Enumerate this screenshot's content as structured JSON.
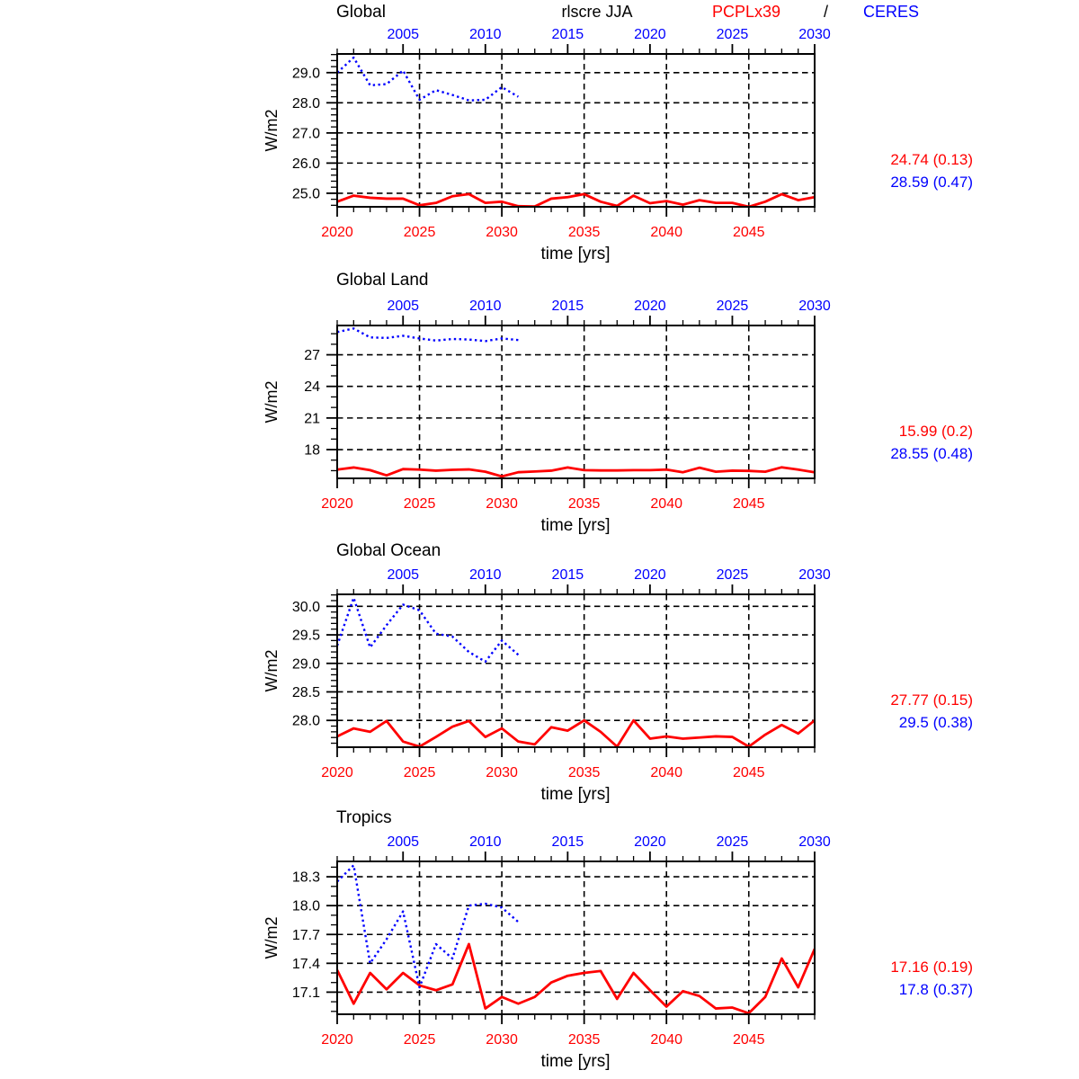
{
  "header": {
    "measure": "rlscre JJA",
    "series_red": "PCPLx39",
    "separator": "/",
    "series_blue": "CERES"
  },
  "axis_labels": {
    "x": "time [yrs]",
    "y": "W/m2"
  },
  "colors": {
    "red": "#ff0000",
    "blue": "#0000ff",
    "grid": "#000000",
    "frame": "#000000"
  },
  "chart_data": [
    {
      "type": "line",
      "name": "global",
      "title": "Global",
      "ylabel": "W/m2",
      "xlabel": "time [yrs]",
      "grid": true,
      "ylim": [
        24.55,
        29.62
      ],
      "y_axis": {
        "major_ticks": [
          25,
          26,
          27,
          28,
          29
        ],
        "tick_labels": [
          "25.0",
          "26.0",
          "27.0",
          "28.0",
          "29.0"
        ],
        "minor_step": 0.2
      },
      "bottom_axis": {
        "range": [
          2020,
          2049
        ],
        "major_ticks": [
          2020,
          2025,
          2030,
          2035,
          2040,
          2045
        ],
        "tick_labels": [
          "2020",
          "2025",
          "2030",
          "2035",
          "2040",
          "2045"
        ],
        "minor_step": 1,
        "color": "#ff0000"
      },
      "top_axis": {
        "range": [
          2001,
          2030
        ],
        "major_ticks": [
          2005,
          2010,
          2015,
          2020,
          2025,
          2030
        ],
        "tick_labels": [
          "2005",
          "2010",
          "2015",
          "2020",
          "2025",
          "2030"
        ],
        "minor_step": 1,
        "color": "#0000ff"
      },
      "series": [
        {
          "name": "PCPLx39",
          "color": "#ff0000",
          "line_style": "solid",
          "x_axis": "bottom",
          "x_start": 2020,
          "x_step": 1,
          "values": [
            24.72,
            24.92,
            24.85,
            24.82,
            24.82,
            24.6,
            24.68,
            24.9,
            24.97,
            24.68,
            24.72,
            24.57,
            24.56,
            24.82,
            24.87,
            24.97,
            24.72,
            24.58,
            24.92,
            24.67,
            24.74,
            24.62,
            24.77,
            24.68,
            24.68,
            24.55,
            24.72,
            24.97,
            24.77,
            24.87
          ]
        },
        {
          "name": "CERES",
          "color": "#0000ff",
          "line_style": "dotted",
          "x_axis": "top",
          "x_start": 2001,
          "x_step": 1,
          "values": [
            29.0,
            29.5,
            28.58,
            28.62,
            29.07,
            28.1,
            28.42,
            28.26,
            28.08,
            28.1,
            28.52,
            28.2
          ]
        }
      ],
      "stats": {
        "pcplx39": "24.74 (0.13)",
        "ceres": "28.59 (0.47)"
      }
    },
    {
      "type": "line",
      "name": "global-land",
      "title": "Global Land",
      "ylabel": "W/m2",
      "xlabel": "time [yrs]",
      "grid": true,
      "ylim": [
        15.27,
        29.78
      ],
      "y_axis": {
        "major_ticks": [
          18,
          21,
          24,
          27
        ],
        "tick_labels": [
          "18",
          "21",
          "24",
          "27"
        ],
        "minor_step": 1
      },
      "bottom_axis": {
        "range": [
          2020,
          2049
        ],
        "major_ticks": [
          2020,
          2025,
          2030,
          2035,
          2040,
          2045
        ],
        "tick_labels": [
          "2020",
          "2025",
          "2030",
          "2035",
          "2040",
          "2045"
        ],
        "minor_step": 1,
        "color": "#ff0000"
      },
      "top_axis": {
        "range": [
          2001,
          2030
        ],
        "major_ticks": [
          2005,
          2010,
          2015,
          2020,
          2025,
          2030
        ],
        "tick_labels": [
          "2005",
          "2010",
          "2015",
          "2020",
          "2025",
          "2030"
        ],
        "minor_step": 1,
        "color": "#0000ff"
      },
      "series": [
        {
          "name": "PCPLx39",
          "color": "#ff0000",
          "line_style": "solid",
          "x_axis": "bottom",
          "x_start": 2020,
          "x_step": 1,
          "values": [
            16.1,
            16.3,
            16.05,
            15.55,
            16.15,
            16.1,
            16.0,
            16.08,
            16.12,
            15.9,
            15.45,
            15.85,
            15.92,
            16.0,
            16.3,
            16.05,
            16.02,
            16.02,
            16.05,
            16.05,
            16.1,
            15.85,
            16.28,
            15.9,
            16.0,
            15.98,
            15.9,
            16.32,
            16.1,
            15.85
          ]
        },
        {
          "name": "CERES",
          "color": "#0000ff",
          "line_style": "dotted",
          "x_axis": "top",
          "x_start": 2001,
          "x_step": 1,
          "values": [
            29.15,
            29.5,
            28.65,
            28.6,
            28.8,
            28.55,
            28.35,
            28.5,
            28.45,
            28.3,
            28.55,
            28.4
          ]
        }
      ],
      "stats": {
        "pcplx39": "15.99 (0.2)",
        "ceres": "28.55 (0.48)"
      }
    },
    {
      "type": "line",
      "name": "global-ocean",
      "title": "Global Ocean",
      "ylabel": "W/m2",
      "xlabel": "time [yrs]",
      "grid": true,
      "ylim": [
        27.53,
        30.21
      ],
      "y_axis": {
        "major_ticks": [
          28.0,
          28.5,
          29.0,
          29.5,
          30.0
        ],
        "tick_labels": [
          "28.0",
          "28.5",
          "29.0",
          "29.5",
          "30.0"
        ],
        "minor_step": 0.1
      },
      "bottom_axis": {
        "range": [
          2020,
          2049
        ],
        "major_ticks": [
          2020,
          2025,
          2030,
          2035,
          2040,
          2045
        ],
        "tick_labels": [
          "2020",
          "2025",
          "2030",
          "2035",
          "2040",
          "2045"
        ],
        "minor_step": 1,
        "color": "#ff0000"
      },
      "top_axis": {
        "range": [
          2001,
          2030
        ],
        "major_ticks": [
          2005,
          2010,
          2015,
          2020,
          2025,
          2030
        ],
        "tick_labels": [
          "2005",
          "2010",
          "2015",
          "2020",
          "2025",
          "2030"
        ],
        "minor_step": 1,
        "color": "#0000ff"
      },
      "series": [
        {
          "name": "PCPLx39",
          "color": "#ff0000",
          "line_style": "solid",
          "x_axis": "bottom",
          "x_start": 2020,
          "x_step": 1,
          "values": [
            27.72,
            27.86,
            27.8,
            27.99,
            27.63,
            27.54,
            27.71,
            27.89,
            27.99,
            27.71,
            27.86,
            27.63,
            27.58,
            27.88,
            27.82,
            28.0,
            27.8,
            27.54,
            28.0,
            27.68,
            27.72,
            27.68,
            27.7,
            27.72,
            27.71,
            27.54,
            27.75,
            27.92,
            27.77,
            28.0
          ]
        },
        {
          "name": "CERES",
          "color": "#0000ff",
          "line_style": "dotted",
          "x_axis": "top",
          "x_start": 2001,
          "x_step": 1,
          "values": [
            29.31,
            30.15,
            29.28,
            29.67,
            30.03,
            29.93,
            29.52,
            29.47,
            29.2,
            29.03,
            29.4,
            29.15
          ]
        }
      ],
      "stats": {
        "pcplx39": "27.77 (0.15)",
        "ceres": "29.5 (0.38)"
      }
    },
    {
      "type": "line",
      "name": "tropics",
      "title": "Tropics",
      "ylabel": "W/m2",
      "xlabel": "time [yrs]",
      "grid": true,
      "ylim": [
        16.87,
        18.46
      ],
      "y_axis": {
        "major_ticks": [
          17.1,
          17.4,
          17.7,
          18.0,
          18.3
        ],
        "tick_labels": [
          "17.1",
          "17.4",
          "17.7",
          "18.0",
          "18.3"
        ],
        "minor_step": 0.1
      },
      "bottom_axis": {
        "range": [
          2020,
          2049
        ],
        "major_ticks": [
          2020,
          2025,
          2030,
          2035,
          2040,
          2045
        ],
        "tick_labels": [
          "2020",
          "2025",
          "2030",
          "2035",
          "2040",
          "2045"
        ],
        "minor_step": 1,
        "color": "#ff0000"
      },
      "top_axis": {
        "range": [
          2001,
          2030
        ],
        "major_ticks": [
          2005,
          2010,
          2015,
          2020,
          2025,
          2030
        ],
        "tick_labels": [
          "2005",
          "2010",
          "2015",
          "2020",
          "2025",
          "2030"
        ],
        "minor_step": 1,
        "color": "#0000ff"
      },
      "series": [
        {
          "name": "PCPLx39",
          "color": "#ff0000",
          "line_style": "solid",
          "x_axis": "bottom",
          "x_start": 2020,
          "x_step": 1,
          "values": [
            17.33,
            16.98,
            17.3,
            17.13,
            17.3,
            17.17,
            17.12,
            17.18,
            17.6,
            16.93,
            17.05,
            16.98,
            17.05,
            17.2,
            17.27,
            17.3,
            17.32,
            17.03,
            17.3,
            17.12,
            16.95,
            17.11,
            17.06,
            16.93,
            16.94,
            16.88,
            17.05,
            17.45,
            17.15,
            17.55
          ]
        },
        {
          "name": "CERES",
          "color": "#0000ff",
          "line_style": "dotted",
          "x_axis": "top",
          "x_start": 2001,
          "x_step": 1,
          "values": [
            18.25,
            18.42,
            17.4,
            17.65,
            17.94,
            17.15,
            17.6,
            17.45,
            18.0,
            18.02,
            17.98,
            17.83
          ]
        }
      ],
      "stats": {
        "pcplx39": "17.16 (0.19)",
        "ceres": "17.8 (0.37)"
      }
    }
  ]
}
